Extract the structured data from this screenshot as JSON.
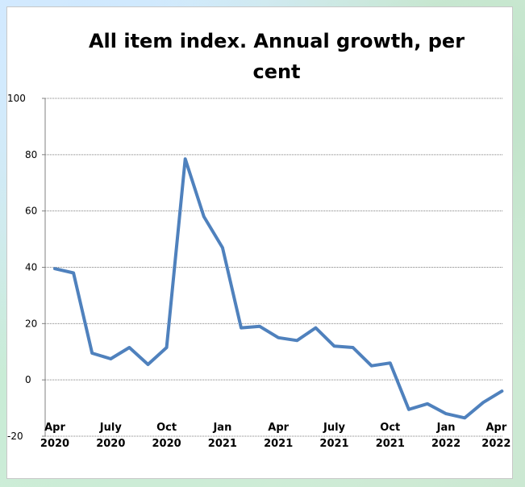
{
  "chart_data": {
    "type": "line",
    "title": "All item index. Annual growth, per cent",
    "title_lines": [
      "All item index. Annual growth, per",
      "cent"
    ],
    "xlabel": "",
    "ylabel": "",
    "ylim": [
      -20,
      100
    ],
    "yticks": [
      "100",
      "80",
      "60",
      "40",
      "20",
      "0",
      "-20"
    ],
    "ytick_values": [
      100,
      80,
      60,
      40,
      20,
      0,
      -20
    ],
    "grid": true,
    "legend": "none",
    "line_color": "#4f81bd",
    "xtick_labels": [
      {
        "index": 0,
        "month": "Apr",
        "year": "2020"
      },
      {
        "index": 3,
        "month": "July",
        "year": "2020"
      },
      {
        "index": 6,
        "month": "Oct",
        "year": "2020"
      },
      {
        "index": 9,
        "month": "Jan",
        "year": "2021"
      },
      {
        "index": 12,
        "month": "Apr",
        "year": "2021"
      },
      {
        "index": 15,
        "month": "July",
        "year": "2021"
      },
      {
        "index": 18,
        "month": "Oct",
        "year": "2021"
      },
      {
        "index": 21,
        "month": "Jan",
        "year": "2022"
      },
      {
        "index": 24,
        "month": "Apr",
        "year": "2022"
      }
    ],
    "x": [
      "2020-04",
      "2020-05",
      "2020-06",
      "2020-07",
      "2020-08",
      "2020-09",
      "2020-10",
      "2020-11",
      "2020-12",
      "2021-01",
      "2021-02",
      "2021-03",
      "2021-04",
      "2021-05",
      "2021-06",
      "2021-07",
      "2021-08",
      "2021-09",
      "2021-10",
      "2021-11",
      "2021-12",
      "2022-01",
      "2022-02",
      "2022-03",
      "2022-04"
    ],
    "series": [
      {
        "values": [
          39.5,
          38,
          9.5,
          7.5,
          11.5,
          5.5,
          11.5,
          78.5,
          58,
          47,
          18.5,
          19,
          15,
          14,
          18.5,
          12,
          11.5,
          5,
          6,
          -10.5,
          -8.5,
          -12,
          -13.5,
          -8,
          -4
        ]
      }
    ]
  }
}
